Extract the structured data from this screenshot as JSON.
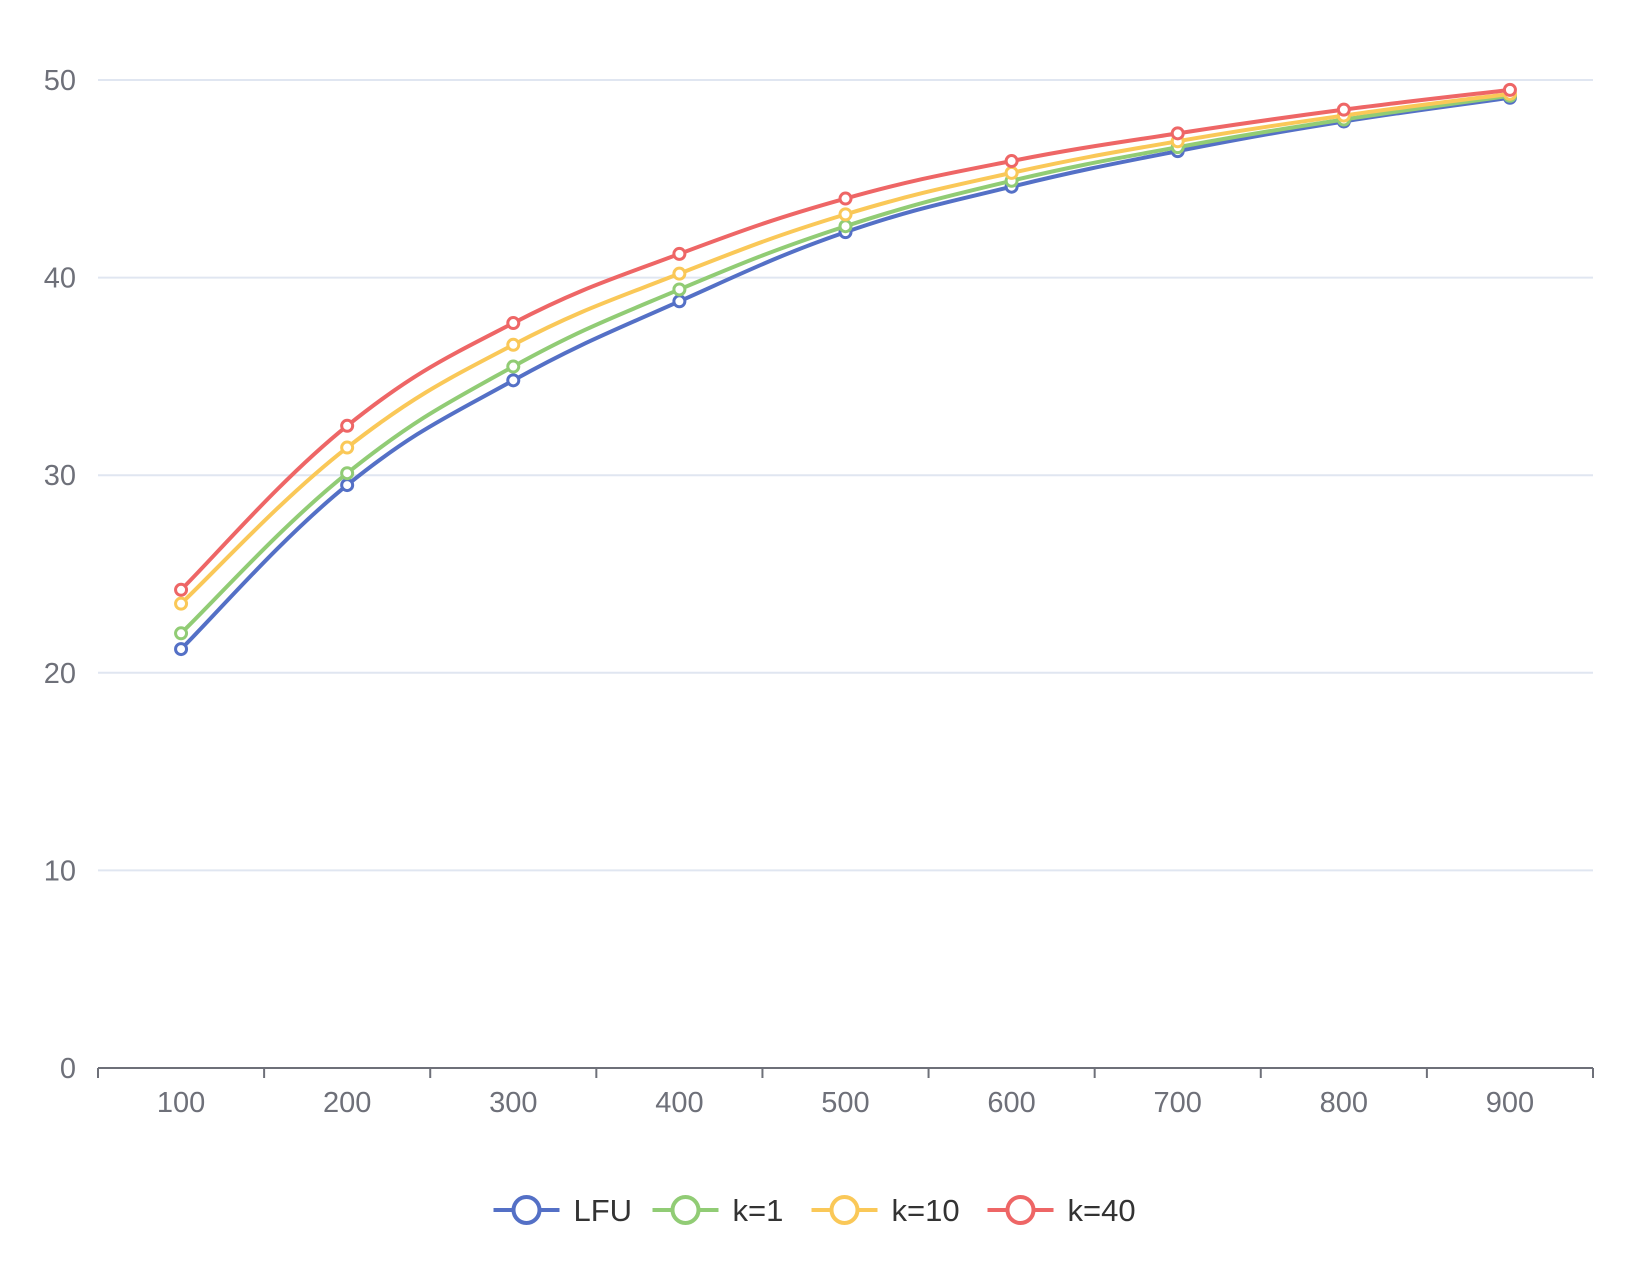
{
  "chart_data": {
    "type": "line",
    "x": [
      "100",
      "200",
      "300",
      "400",
      "500",
      "600",
      "700",
      "800",
      "900"
    ],
    "ylim": [
      0,
      50
    ],
    "y_ticks": [
      0,
      10,
      20,
      30,
      40,
      50
    ],
    "grid": true,
    "smooth": true,
    "legend_position": "bottom-center",
    "series": [
      {
        "name": "LFU",
        "color": "#5470c6",
        "values": [
          21.2,
          29.5,
          34.8,
          38.8,
          42.3,
          44.6,
          46.4,
          47.9,
          49.1
        ]
      },
      {
        "name": "k=1",
        "color": "#91cc75",
        "values": [
          22.0,
          30.1,
          35.5,
          39.4,
          42.6,
          44.9,
          46.6,
          48.0,
          49.2
        ]
      },
      {
        "name": "k=10",
        "color": "#fac858",
        "values": [
          23.5,
          31.4,
          36.6,
          40.2,
          43.2,
          45.3,
          46.9,
          48.2,
          49.3
        ]
      },
      {
        "name": "k=40",
        "color": "#ee6666",
        "values": [
          24.2,
          32.5,
          37.7,
          41.2,
          44.0,
          45.9,
          47.3,
          48.5,
          49.5
        ]
      }
    ]
  }
}
